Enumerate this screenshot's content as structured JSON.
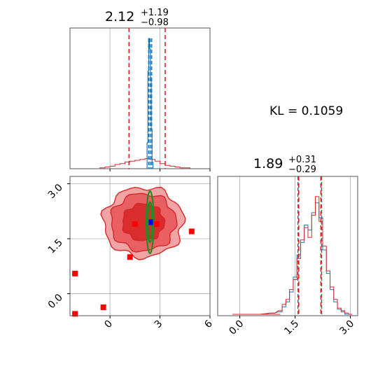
{
  "colors": {
    "reference": "#1f77b4",
    "approx": "#d62728",
    "contour_fill_outer": "#f19a9b",
    "contour_fill_mid": "#e8585b",
    "contour_fill_inner": "#d62728",
    "ref_contour": "#228b22",
    "markers": "#ff0000",
    "truth_marker": "#0000ff",
    "grid": "#b0b0b0"
  },
  "kl_label": "KL = 0.1059",
  "chart_data": [
    {
      "type": "histogram",
      "panel": "top-left",
      "title": {
        "median": "2.12",
        "plus": "+1.19",
        "minus": "−0.98"
      },
      "xlim": [
        -2.4,
        6.0
      ],
      "x_ticks": [
        0,
        3,
        6
      ],
      "blue_quantile_lines": [
        2.32,
        2.41,
        2.5
      ],
      "red_quantile_lines": [
        1.14,
        2.12,
        3.31
      ],
      "red_hist_edges": [
        -0.6,
        -0.3,
        0.0,
        0.3,
        0.6,
        0.9,
        1.2,
        1.5,
        1.8,
        2.1,
        2.4,
        2.7,
        3.0,
        3.3,
        3.6,
        3.9,
        4.2,
        4.5,
        4.8
      ],
      "red_hist_counts": [
        0.01,
        0.02,
        0.03,
        0.05,
        0.06,
        0.08,
        0.09,
        0.1,
        0.11,
        0.12,
        0.11,
        0.09,
        0.06,
        0.04,
        0.03,
        0.02,
        0.01,
        0.01
      ],
      "blue_hist_x": [
        2.25,
        2.3,
        2.35,
        2.4,
        2.45,
        2.5,
        2.55
      ],
      "blue_hist_counts": [
        0.2,
        0.75,
        1.0,
        0.92,
        0.7,
        0.3,
        0.05
      ]
    },
    {
      "type": "contour",
      "panel": "bottom-left",
      "xlim": [
        -2.4,
        6.0
      ],
      "ylim": [
        -0.6,
        3.2
      ],
      "x_ticks": [
        0,
        3,
        6
      ],
      "y_ticks": [
        0.0,
        1.5,
        3.0
      ],
      "x_tick_labels": [
        "0",
        "3",
        "6"
      ],
      "y_tick_labels": [
        "0.0",
        "1.5",
        "3.0"
      ],
      "approx_center": [
        2.0,
        1.95
      ],
      "approx_sigma_levels": [
        {
          "rx": 2.4,
          "ry": 0.95
        },
        {
          "rx": 1.95,
          "ry": 0.78
        },
        {
          "rx": 1.25,
          "ry": 0.5
        }
      ],
      "reference_center": [
        2.4,
        1.95
      ],
      "reference_levels": [
        {
          "rx": 0.22,
          "ry": 0.85
        },
        {
          "rx": 0.13,
          "ry": 0.55
        }
      ],
      "markers": [
        [
          -2.1,
          0.55
        ],
        [
          -2.1,
          -0.55
        ],
        [
          -0.4,
          -0.37
        ],
        [
          1.2,
          1.0
        ],
        [
          1.5,
          1.9
        ],
        [
          2.8,
          1.9
        ],
        [
          4.9,
          1.7
        ]
      ],
      "truth_point": [
        2.45,
        1.95
      ]
    },
    {
      "type": "histogram",
      "panel": "bottom-right",
      "title": {
        "median": "1.89",
        "plus": "+0.31",
        "minus": "−0.29"
      },
      "xlim": [
        -0.6,
        3.2
      ],
      "x_ticks": [
        0.0,
        1.5,
        3.0
      ],
      "x_tick_labels": [
        "0.0",
        "1.5",
        "3.0"
      ],
      "blue_quantile_lines": [
        1.58,
        2.22
      ],
      "red_quantile_lines": [
        1.6,
        1.89,
        2.2
      ],
      "hist_x": [
        0.1,
        0.5,
        0.9,
        1.1,
        1.2,
        1.3,
        1.4,
        1.5,
        1.6,
        1.7,
        1.8,
        1.9,
        2.0,
        2.1,
        2.2,
        2.3,
        2.4,
        2.5,
        2.6,
        2.7,
        2.8,
        2.9,
        3.0
      ],
      "red_hist_counts": [
        0.0,
        0.0,
        0.01,
        0.03,
        0.08,
        0.12,
        0.2,
        0.28,
        0.45,
        0.6,
        0.7,
        0.62,
        0.8,
        0.95,
        0.75,
        0.55,
        0.35,
        0.22,
        0.12,
        0.05,
        0.03,
        0.01,
        0.0
      ],
      "blue_hist_counts": [
        0.0,
        0.0,
        0.01,
        0.02,
        0.06,
        0.1,
        0.18,
        0.3,
        0.48,
        0.58,
        0.72,
        0.68,
        0.82,
        0.9,
        0.78,
        0.52,
        0.33,
        0.2,
        0.1,
        0.04,
        0.02,
        0.0,
        0.0
      ]
    }
  ]
}
